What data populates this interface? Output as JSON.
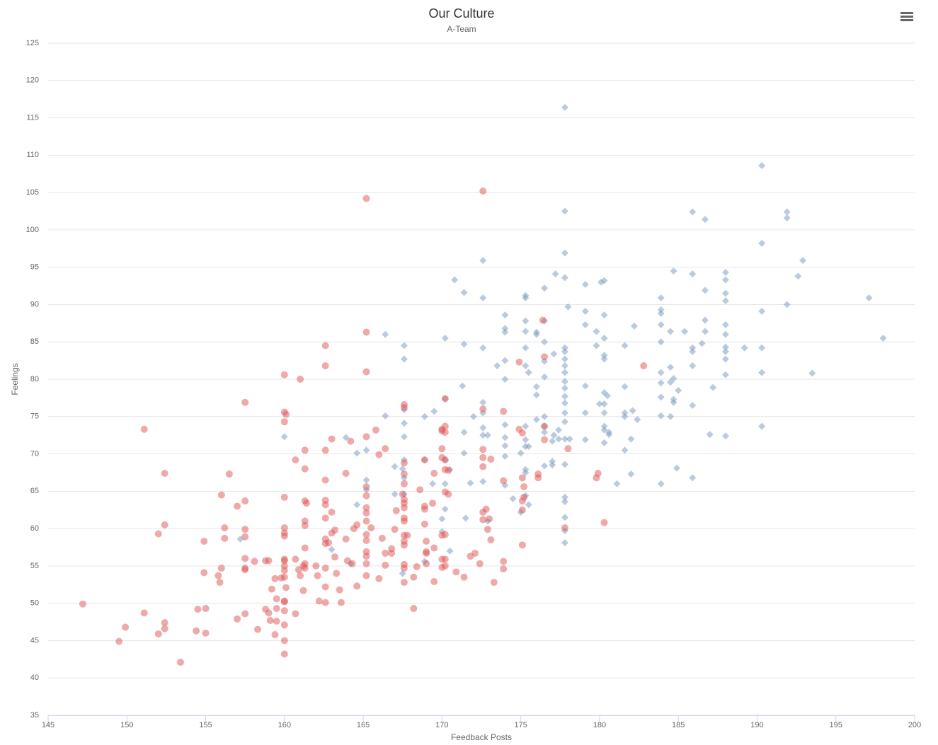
{
  "chart_data": {
    "type": "scatter",
    "title": "Our Culture",
    "subtitle": "A-Team",
    "x_label": "Feedback Posts",
    "y_label": "Feelings",
    "xlim": [
      145,
      200
    ],
    "xticks": [
      145,
      150,
      155,
      160,
      165,
      170,
      175,
      180,
      185,
      190,
      195,
      200
    ],
    "ylim": [
      35,
      125
    ],
    "yticks": [
      35,
      40,
      45,
      50,
      55,
      60,
      65,
      70,
      75,
      80,
      85,
      90,
      95,
      100,
      105,
      110,
      115,
      120,
      125
    ],
    "grid": true,
    "series": [
      {
        "color": "rgba(119,152,191,0.5)",
        "marker": "diamond",
        "x": [
          177.8,
          177.8,
          177.8,
          177.8,
          177.8,
          177.8,
          177.8,
          177.8,
          177.8,
          177.8,
          177.8,
          177.8,
          177.8,
          177.8,
          177.8,
          177.8,
          177.8,
          177.8,
          177.8,
          177.8,
          177.8,
          177.8,
          178.0,
          178.1,
          190.3,
          191.9,
          191.9,
          190.3,
          192.9,
          192.6,
          191.9,
          190.3,
          190.3,
          190.3,
          190.3,
          197.1,
          198.0,
          193.5,
          189.2,
          188.0,
          188.0,
          188.0,
          188.0,
          188.0,
          188.0,
          188.0,
          188.0,
          188.0,
          188.0,
          188.0,
          186.7,
          186.7,
          186.7,
          186.7,
          187.2,
          187.0,
          185.9,
          185.9,
          185.9,
          185.9,
          185.9,
          185.9,
          185.9,
          186.5,
          185.4,
          184.7,
          184.5,
          184.5,
          184.5,
          184.7,
          184.7,
          184.7,
          185.0,
          184.9,
          183.9,
          183.9,
          183.9,
          183.9,
          183.9,
          183.9,
          183.9,
          183.9,
          183.9,
          183.9,
          184.5,
          182.2,
          182.1,
          182.0,
          182.0,
          182.4,
          181.6,
          181.6,
          181.6,
          181.6,
          181.6,
          181.1,
          180.3,
          180.1,
          180.3,
          180.3,
          180.3,
          180.3,
          180.3,
          180.3,
          180.3,
          180.3,
          180.3,
          180.3,
          180.5,
          180.0,
          179.8,
          179.8,
          180.6,
          180.6,
          179.1,
          179.1,
          179.1,
          179.1,
          179.1,
          179.1,
          177.2,
          176.5,
          176.5,
          176.5,
          176.5,
          176.5,
          176.5,
          176.5,
          176.5,
          176.5,
          177.1,
          177.4,
          177.1,
          177.4,
          177.0,
          177.0,
          177.0,
          176.0,
          176.0,
          176.0,
          176.0,
          176.0,
          175.3,
          175.3,
          175.3,
          175.3,
          175.3,
          175.3,
          175.3,
          175.3,
          175.3,
          175.3,
          175.3,
          175.3,
          175.5,
          175.5,
          175.5,
          175.0,
          175.0,
          174.0,
          174.0,
          174.0,
          174.0,
          174.0,
          174.0,
          174.0,
          174.0,
          174.0,
          174.0,
          174.5,
          173.5,
          172.6,
          172.6,
          172.6,
          172.6,
          172.6,
          172.6,
          172.6,
          172.6,
          172.9,
          172.9,
          172.0,
          171.8,
          171.4,
          171.4,
          171.4,
          171.4,
          171.5,
          171.3,
          170.8,
          170.2,
          170.2,
          170.2,
          170.2,
          170.2,
          170.0,
          170.0,
          170.5,
          170.5,
          169.5,
          169.4,
          168.9,
          168.9,
          168.9,
          167.6,
          167.6,
          167.6,
          167.6,
          167.6,
          167.6,
          167.6,
          167.6,
          167.5,
          167.5,
          167.0,
          167.0,
          166.4,
          166.4,
          165.2,
          165.2,
          165.2,
          164.6,
          164.6,
          163.9,
          163.0,
          164.2,
          160.0,
          157.2
        ],
        "y": [
          116.4,
          102.5,
          96.9,
          93.6,
          84.2,
          83.7,
          82.7,
          81.8,
          80.9,
          79.7,
          78.8,
          77.7,
          76.8,
          75.5,
          74.3,
          72.0,
          68.6,
          64.2,
          63.6,
          61.5,
          59.7,
          58.1,
          89.7,
          72.0,
          108.6,
          102.4,
          101.6,
          98.2,
          95.9,
          93.8,
          90.0,
          89.1,
          84.2,
          80.9,
          73.7,
          90.9,
          85.5,
          80.8,
          84.2,
          94.3,
          93.3,
          91.5,
          90.5,
          87.3,
          86.0,
          84.3,
          83.7,
          82.7,
          80.6,
          72.4,
          101.4,
          91.9,
          87.9,
          86.4,
          78.9,
          72.6,
          102.4,
          94.1,
          84.2,
          83.7,
          81.8,
          76.5,
          66.8,
          84.8,
          86.4,
          94.5,
          86.4,
          81.6,
          79.6,
          80.1,
          77.3,
          76.9,
          78.5,
          68.1,
          90.9,
          89.3,
          88.8,
          87.3,
          85.0,
          80.9,
          79.5,
          77.6,
          75.1,
          66.0,
          75.0,
          87.1,
          75.8,
          72.0,
          67.3,
          74.6,
          84.5,
          79.0,
          75.5,
          75.0,
          70.5,
          66.0,
          93.2,
          93.0,
          88.6,
          85.5,
          83.2,
          82.7,
          78.2,
          76.7,
          75.5,
          73.7,
          73.2,
          71.5,
          77.8,
          76.7,
          86.4,
          84.5,
          72.9,
          72.6,
          92.7,
          89.1,
          87.3,
          79.1,
          75.5,
          71.9,
          94.1,
          92.2,
          87.8,
          85.0,
          82.4,
          80.3,
          75.0,
          73.7,
          72.9,
          68.4,
          83.4,
          73.2,
          72.5,
          72.0,
          71.7,
          69.0,
          68.5,
          86.3,
          86.0,
          79.0,
          77.9,
          74.6,
          91.2,
          90.9,
          87.8,
          86.4,
          84.2,
          81.8,
          73.7,
          71.9,
          71.0,
          67.9,
          67.5,
          64.4,
          80.9,
          71.0,
          63.2,
          70.1,
          62.2,
          88.6,
          86.8,
          86.3,
          82.5,
          80.0,
          73.9,
          72.2,
          71.1,
          69.7,
          65.8,
          64.0,
          81.8,
          95.9,
          90.9,
          84.2,
          76.9,
          75.5,
          73.5,
          72.5,
          66.3,
          72.5,
          61.0,
          75.0,
          66.1,
          91.6,
          84.7,
          72.9,
          70.1,
          61.4,
          79.1,
          93.3,
          85.5,
          77.4,
          69.2,
          66.0,
          62.6,
          61.3,
          59.6,
          67.9,
          57.0,
          75.7,
          66.0,
          75.0,
          69.2,
          55.6,
          84.5,
          82.7,
          75.9,
          74.1,
          72.3,
          69.2,
          66.8,
          64.6,
          68.0,
          54.0,
          64.6,
          68.3,
          75.1,
          86.0,
          70.5,
          66.5,
          65.2,
          70.1,
          63.2,
          72.2,
          57.2,
          55.3,
          72.3,
          58.6
        ]
      },
      {
        "color": "rgba(223,83,83,0.5)",
        "marker": "circle",
        "x": [
          147.2,
          149.5,
          149.9,
          151.1,
          151.1,
          152.0,
          152.0,
          152.4,
          152.4,
          152.4,
          152.4,
          153.4,
          154.4,
          154.5,
          155.0,
          155.0,
          154.9,
          154.9,
          155.8,
          155.9,
          156.0,
          156.0,
          156.2,
          156.2,
          156.5,
          157.0,
          157.0,
          157.5,
          157.5,
          157.5,
          157.5,
          157.5,
          157.5,
          157.5,
          157.5,
          158.1,
          158.3,
          158.8,
          158.8,
          159.0,
          159.0,
          159.1,
          159.2,
          159.4,
          159.5,
          159.5,
          159.5,
          159.4,
          159.8,
          160.0,
          160.0,
          160.1,
          160.0,
          160.0,
          160.0,
          160.0,
          160.0,
          160.0,
          160.0,
          160.0,
          160.0,
          160.0,
          160.0,
          160.0,
          160.0,
          160.0,
          160.0,
          160.0,
          160.1,
          160.7,
          160.7,
          160.7,
          160.9,
          161.0,
          161.0,
          161.2,
          161.3,
          161.3,
          161.3,
          161.4,
          161.3,
          161.3,
          161.3,
          161.3,
          161.3,
          161.2,
          162.0,
          162.1,
          162.2,
          162.6,
          162.6,
          162.6,
          162.6,
          162.6,
          162.6,
          162.6,
          162.6,
          162.6,
          162.6,
          162.6,
          162.6,
          162.8,
          163.0,
          163.0,
          163.0,
          163.2,
          163.2,
          163.3,
          163.5,
          163.6,
          163.9,
          163.9,
          164.0,
          164.2,
          164.3,
          164.4,
          164.6,
          164.6,
          165.2,
          165.2,
          165.2,
          165.2,
          165.2,
          165.2,
          165.2,
          165.2,
          165.2,
          165.2,
          165.2,
          165.2,
          165.2,
          165.2,
          165.2,
          165.5,
          165.8,
          166.0,
          166.0,
          166.2,
          166.4,
          166.4,
          166.4,
          166.8,
          166.8,
          167.0,
          167.1,
          167.5,
          167.6,
          167.6,
          167.6,
          167.6,
          167.6,
          167.6,
          167.6,
          167.6,
          167.6,
          167.6,
          167.6,
          167.6,
          167.6,
          167.6,
          167.6,
          167.6,
          167.8,
          168.2,
          168.2,
          168.4,
          168.6,
          168.9,
          168.9,
          168.9,
          168.9,
          169.0,
          169.0,
          169.0,
          169.0,
          169.4,
          169.5,
          169.5,
          169.5,
          170.0,
          170.0,
          170.0,
          170.0,
          170.0,
          170.0,
          170.0,
          170.2,
          170.2,
          170.2,
          170.2,
          170.2,
          170.2,
          170.2,
          170.2,
          170.2,
          170.4,
          170.4,
          170.9,
          171.4,
          171.8,
          172.1,
          172.4,
          172.6,
          172.6,
          172.6,
          172.6,
          172.6,
          172.6,
          172.6,
          172.8,
          172.9,
          173.0,
          173.1,
          173.1,
          173.3,
          173.9,
          173.9,
          173.9,
          173.9,
          174.9,
          174.9,
          175.1,
          175.1,
          175.1,
          175.1,
          175.1,
          175.2,
          175.2,
          176.1,
          176.1,
          176.4,
          176.5,
          176.5,
          176.5,
          177.8,
          178.0,
          179.8,
          179.9,
          180.3,
          182.8
        ],
        "y": [
          49.9,
          44.9,
          46.8,
          48.7,
          73.3,
          45.9,
          59.3,
          67.4,
          60.5,
          47.4,
          46.6,
          42.1,
          46.3,
          49.2,
          46.0,
          49.3,
          58.3,
          54.1,
          53.7,
          52.8,
          64.5,
          54.7,
          60.1,
          58.7,
          67.3,
          63.0,
          47.9,
          76.9,
          63.7,
          59.9,
          58.9,
          56.0,
          54.7,
          54.5,
          48.6,
          55.6,
          46.5,
          49.2,
          55.7,
          55.7,
          48.7,
          47.7,
          51.9,
          53.3,
          50.6,
          49.3,
          47.6,
          45.8,
          53.4,
          80.6,
          75.6,
          75.3,
          74.3,
          64.2,
          60.1,
          59.4,
          59.0,
          55.9,
          55.7,
          55.0,
          54.4,
          53.5,
          50.3,
          50.2,
          49.0,
          47.1,
          45.0,
          43.2,
          52.1,
          69.2,
          55.9,
          48.6,
          54.5,
          80.0,
          53.7,
          55.0,
          70.5,
          68.0,
          63.7,
          63.4,
          61.0,
          60.4,
          57.4,
          55.3,
          54.7,
          51.7,
          55.0,
          53.7,
          50.3,
          84.5,
          81.8,
          70.5,
          66.5,
          63.8,
          63.2,
          61.4,
          58.6,
          58.0,
          54.7,
          52.2,
          50.1,
          58.1,
          59.4,
          72.0,
          62.2,
          59.8,
          56.2,
          54.0,
          51.8,
          50.1,
          67.4,
          58.6,
          55.7,
          71.7,
          55.3,
          60.0,
          60.5,
          52.3,
          104.2,
          86.3,
          81.0,
          72.3,
          65.6,
          64.4,
          62.8,
          62.1,
          61.0,
          59.2,
          58.4,
          56.9,
          56.3,
          55.3,
          53.7,
          60.1,
          73.2,
          69.9,
          53.3,
          58.7,
          70.7,
          56.7,
          55.1,
          57.3,
          56.7,
          59.9,
          62.4,
          64.6,
          76.6,
          76.2,
          68.8,
          67.3,
          66.0,
          63.9,
          63.4,
          62.8,
          61.4,
          61.0,
          59.1,
          58.3,
          57.8,
          55.2,
          54.7,
          52.8,
          59.1,
          53.5,
          49.3,
          54.9,
          65.2,
          69.2,
          63.0,
          62.6,
          60.6,
          58.3,
          56.9,
          56.7,
          55.3,
          63.4,
          67.4,
          52.9,
          57.4,
          73.3,
          73.1,
          70.7,
          69.5,
          59.1,
          55.9,
          54.8,
          77.4,
          73.7,
          72.9,
          69.2,
          67.9,
          64.9,
          59.2,
          55.9,
          55.0,
          67.8,
          64.6,
          54.2,
          53.5,
          56.3,
          56.7,
          55.3,
          105.2,
          76.0,
          70.6,
          69.5,
          68.3,
          62.2,
          61.2,
          62.6,
          59.9,
          61.3,
          69.3,
          58.5,
          52.8,
          75.7,
          66.4,
          55.6,
          54.6,
          82.3,
          73.3,
          72.8,
          66.8,
          63.7,
          62.5,
          57.8,
          65.6,
          64.2,
          67.3,
          66.8,
          87.9,
          83.0,
          73.7,
          71.9,
          60.1,
          70.7,
          66.8,
          67.4,
          60.8,
          81.8
        ]
      }
    ]
  }
}
